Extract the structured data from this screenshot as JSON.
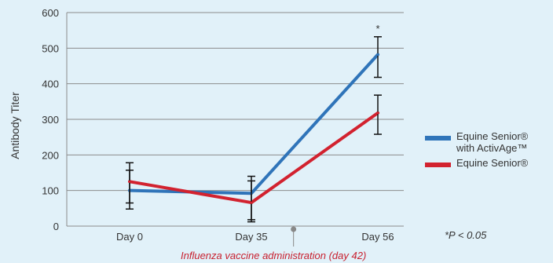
{
  "chart_data": {
    "type": "line",
    "title": "",
    "xlabel": "",
    "ylabel": "Antibody Titer",
    "categories": [
      "Day 0",
      "Day 35",
      "Day 56"
    ],
    "ylim": [
      0,
      600
    ],
    "yticks": [
      0,
      100,
      200,
      300,
      400,
      500,
      600
    ],
    "grid": "horizontal",
    "legend_position": "right",
    "series": [
      {
        "name": "Equine Senior® with ActivAge™",
        "color": "#2f74b9",
        "values": [
          100,
          92,
          482
        ],
        "error_low": [
          48,
          18,
          418
        ],
        "error_high": [
          157,
          127,
          532
        ]
      },
      {
        "name": "Equine Senior®",
        "color": "#d2222f",
        "values": [
          125,
          66,
          318
        ],
        "error_low": [
          65,
          12,
          258
        ],
        "error_high": [
          178,
          140,
          368
        ]
      }
    ],
    "significance": [
      {
        "category": "Day 56",
        "label": "*"
      }
    ],
    "event_marker": {
      "label": "Influenza vaccine administration (day 42)",
      "day": 42,
      "color": "#c8202f"
    },
    "footnote": "*P < 0.05",
    "axis_color": "#8c8c8c"
  },
  "legend": {
    "items": [
      {
        "label": "Equine Senior® with ActivAge™",
        "display": "Equine Senior®\nwith ActivAge™",
        "color": "#2f74b9"
      },
      {
        "label": "Equine Senior®",
        "display": "Equine Senior®",
        "color": "#d2222f"
      }
    ]
  }
}
